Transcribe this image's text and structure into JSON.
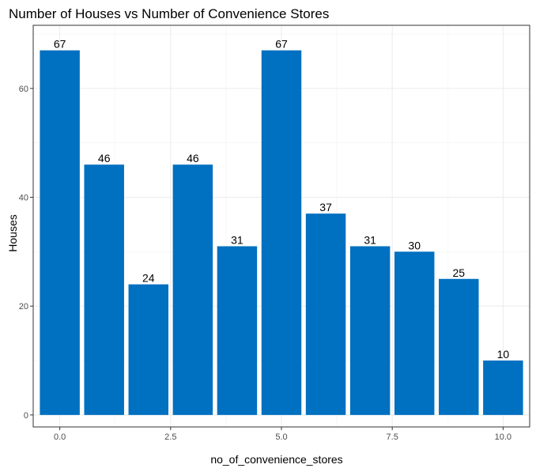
{
  "chart_data": {
    "type": "bar",
    "title": "Number of Houses vs Number of Convenience Stores",
    "xlabel": "no_of_convenience_stores",
    "ylabel": "Houses",
    "categories": [
      0,
      1,
      2,
      3,
      4,
      5,
      6,
      7,
      8,
      9,
      10
    ],
    "values": [
      67,
      46,
      24,
      46,
      31,
      67,
      37,
      31,
      30,
      25,
      10
    ],
    "xlim": [
      -0.6,
      10.6
    ],
    "ylim": [
      -2.2,
      71.6
    ],
    "x_ticks": [
      0,
      2.5,
      5,
      7.5,
      10
    ],
    "x_tick_labels": [
      "0.0",
      "2.5",
      "5.0",
      "7.5",
      "10.0"
    ],
    "y_ticks": [
      0,
      20,
      40,
      60
    ],
    "y_tick_labels": [
      "0",
      "20",
      "40",
      "60"
    ],
    "grid": true,
    "bar_color": "#0070C0",
    "bar_width": 0.9,
    "legend": "none"
  }
}
